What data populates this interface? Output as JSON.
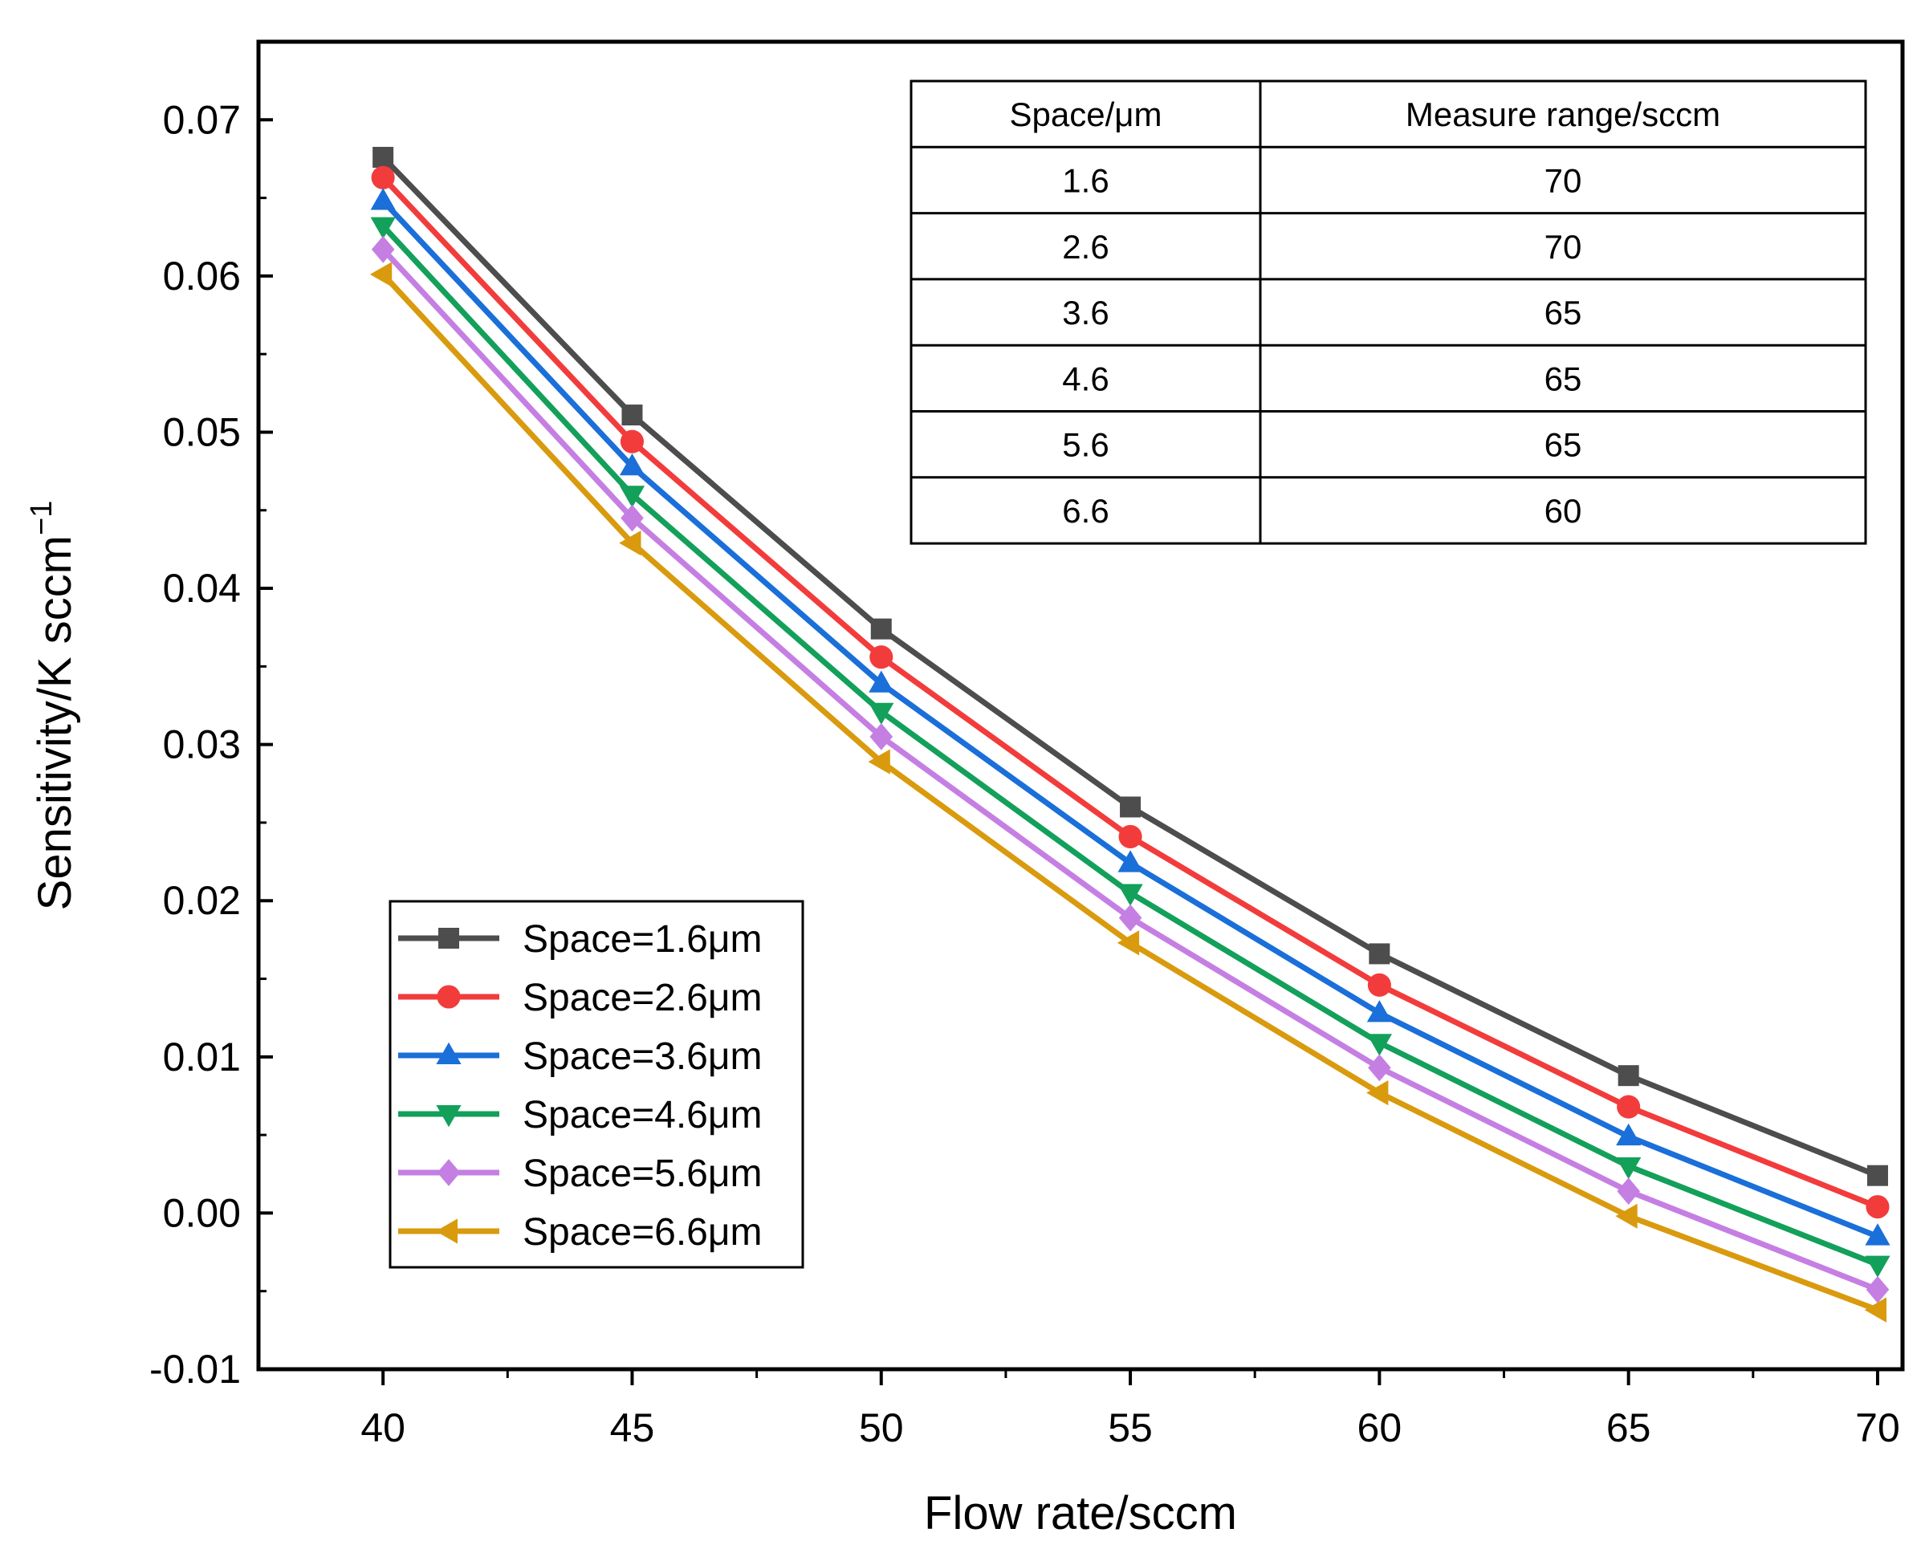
{
  "chart_data": {
    "type": "line",
    "xlabel": "Flow rate/sccm",
    "ylabel": "Sensitivity/K sccm",
    "ylabel_superscript": "−1",
    "x": [
      40,
      45,
      50,
      55,
      60,
      65,
      70
    ],
    "xlim": [
      37.5,
      70.5
    ],
    "ylim": [
      -0.01,
      0.075
    ],
    "xticks": [
      40,
      45,
      50,
      55,
      60,
      65,
      70
    ],
    "yticks": [
      -0.01,
      0.0,
      0.01,
      0.02,
      0.03,
      0.04,
      0.05,
      0.06,
      0.07
    ],
    "ytick_labels": [
      "-0.01",
      "0.00",
      "0.01",
      "0.02",
      "0.03",
      "0.04",
      "0.05",
      "0.06",
      "0.07"
    ],
    "legend_position": "bottom-left",
    "series": [
      {
        "name": "Space=1.6μm",
        "color": "#4d4d4d",
        "marker": "square",
        "values": [
          0.0676,
          0.0511,
          0.0374,
          0.026,
          0.0166,
          0.0088,
          0.0024
        ]
      },
      {
        "name": "Space=2.6μm",
        "color": "#f23c3c",
        "marker": "circle",
        "values": [
          0.0663,
          0.0494,
          0.0356,
          0.0241,
          0.0146,
          0.0068,
          0.0004
        ]
      },
      {
        "name": "Space=3.6μm",
        "color": "#1a6fd9",
        "marker": "triangle-up",
        "values": [
          0.0648,
          0.0478,
          0.0339,
          0.0224,
          0.0128,
          0.0049,
          -0.0015
        ]
      },
      {
        "name": "Space=4.6μm",
        "color": "#13a05a",
        "marker": "triangle-down",
        "values": [
          0.0632,
          0.046,
          0.0321,
          0.0205,
          0.0109,
          0.003,
          -0.0033
        ]
      },
      {
        "name": "Space=5.6μm",
        "color": "#c57fe3",
        "marker": "diamond",
        "values": [
          0.0617,
          0.0445,
          0.0305,
          0.0189,
          0.0093,
          0.0014,
          -0.0049
        ]
      },
      {
        "name": "Space=6.6μm",
        "color": "#d99a0d",
        "marker": "triangle-left",
        "values": [
          0.0601,
          0.0429,
          0.0289,
          0.0173,
          0.0077,
          -0.0002,
          -0.0062
        ]
      }
    ],
    "inset_table": {
      "headers": [
        "Space/μm",
        "Measure range/sccm"
      ],
      "rows": [
        [
          "1.6",
          "70"
        ],
        [
          "2.6",
          "70"
        ],
        [
          "3.6",
          "65"
        ],
        [
          "4.6",
          "65"
        ],
        [
          "5.6",
          "65"
        ],
        [
          "6.6",
          "60"
        ]
      ]
    }
  }
}
